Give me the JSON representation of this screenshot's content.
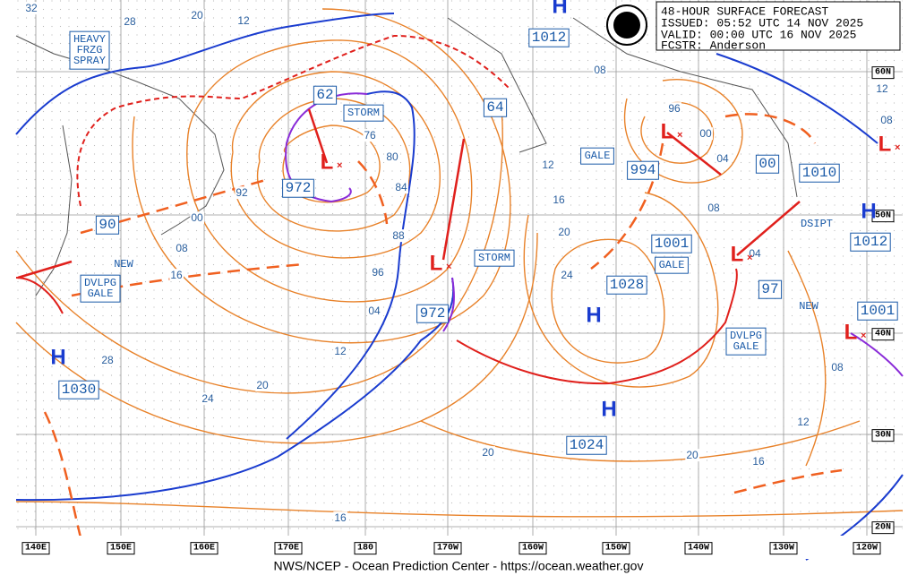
{
  "header": {
    "lines": [
      "48-HOUR SURFACE FORECAST",
      "ISSUED: 05:52 UTC 14 NOV 2025",
      "VALID:  00:00 UTC 16 NOV 2025",
      "FCSTR:  Anderson"
    ]
  },
  "footer": "NWS/NCEP - Ocean Prediction Center - https://ocean.weather.gov",
  "longitudes": [
    "140E",
    "150E",
    "160E",
    "170E",
    "180",
    "170W",
    "160W",
    "150W",
    "140W",
    "130W",
    "120W"
  ],
  "latitudes": [
    "60N",
    "50N",
    "40N",
    "30N",
    "20N"
  ],
  "systems": [
    {
      "symbol": "H",
      "pressure": "1012"
    },
    {
      "symbol": "H",
      "pressure": "1030"
    },
    {
      "symbol": "H",
      "pressure": "1028"
    },
    {
      "symbol": "H",
      "pressure": "1024"
    },
    {
      "symbol": "L",
      "pressure": "972"
    },
    {
      "symbol": "L",
      "pressure": "972"
    },
    {
      "symbol": "L",
      "pressure": "994"
    },
    {
      "symbol": "L",
      "pressure": "1001"
    },
    {
      "symbol": "L",
      "pressure": "1001"
    },
    {
      "symbol": "H",
      "pressure": "1012"
    },
    {
      "symbol": "L"
    }
  ],
  "pressure_labels": [
    "90",
    "62",
    "64",
    "00",
    "1010",
    "97"
  ],
  "box_labels": [
    {
      "lines": [
        "HEAVY",
        "FRZG",
        "SPRAY"
      ]
    },
    {
      "lines": [
        "STORM"
      ]
    },
    {
      "lines": [
        "STORM"
      ]
    },
    {
      "lines": [
        "GALE"
      ]
    },
    {
      "lines": [
        "GALE"
      ]
    },
    {
      "lines": [
        "DVLPG",
        "GALE"
      ]
    },
    {
      "lines": [
        "DVLPG",
        "GALE"
      ]
    }
  ],
  "notes": [
    "NEW",
    "NEW",
    "DSIPT"
  ],
  "isobar_labels": [
    "32",
    "28",
    "20",
    "12",
    "92",
    "00",
    "08",
    "16",
    "76",
    "80",
    "84",
    "88",
    "96",
    "04",
    "12",
    "20",
    "24",
    "28",
    "12",
    "16",
    "20",
    "24",
    "08",
    "96",
    "00",
    "04",
    "08",
    "12",
    "08",
    "08",
    "12",
    "16",
    "20",
    "20",
    "16",
    "04"
  ]
}
